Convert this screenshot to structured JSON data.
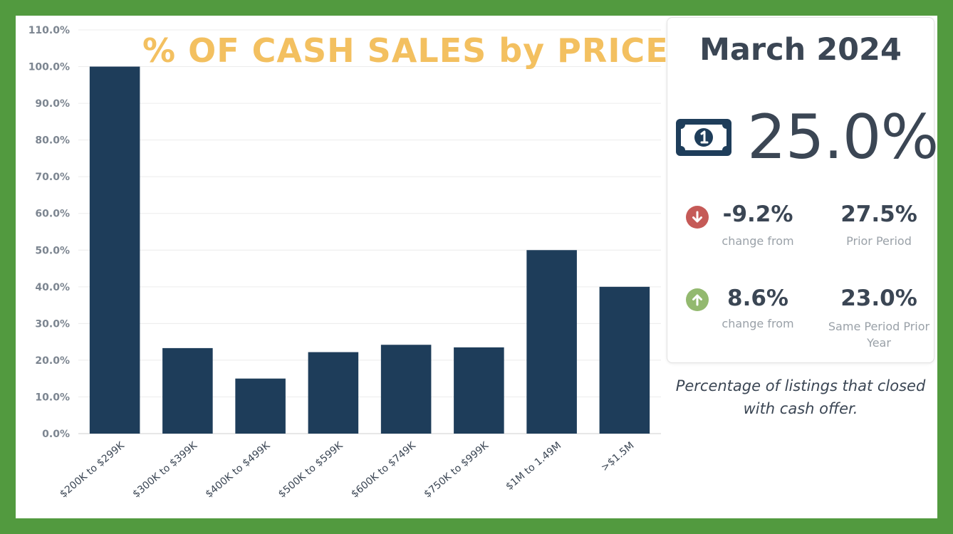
{
  "colors": {
    "background": "#529a3f",
    "bar": "#1e3d5a",
    "title": "#f3c060",
    "text": "#3b4654",
    "muted": "#9aa1a8",
    "down": "#c55a57",
    "up": "#93b96f"
  },
  "chart_data": {
    "type": "bar",
    "title": "% OF CASH SALES by PRICE",
    "categories": [
      "$200K to $299K",
      "$300K to $399K",
      "$400K to $499K",
      "$500K to $599K",
      "$600K to $749K",
      "$750K to $999K",
      "$1M to 1.49M",
      ">$1.5M"
    ],
    "values": [
      100.0,
      23.3,
      15.0,
      22.2,
      24.2,
      23.5,
      50.0,
      40.0
    ],
    "ylim": [
      0,
      110
    ],
    "yticks": [
      "0.0%",
      "10.0%",
      "20.0%",
      "30.0%",
      "40.0%",
      "50.0%",
      "60.0%",
      "70.0%",
      "80.0%",
      "90.0%",
      "100.0%",
      "110.0%"
    ],
    "ytick_values": [
      0,
      10,
      20,
      30,
      40,
      50,
      60,
      70,
      80,
      90,
      100,
      110
    ],
    "grid": true,
    "xlabel": "",
    "ylabel": ""
  },
  "kpi": {
    "period": "March 2024",
    "icon": "cash-bill-icon",
    "value": "25.0%",
    "comparisons": [
      {
        "direction": "down",
        "icon": "arrow-down-icon",
        "change": "-9.2%",
        "change_label": "change from",
        "reference_value": "27.5%",
        "reference_label": "Prior Period"
      },
      {
        "direction": "up",
        "icon": "arrow-up-icon",
        "change": "8.6%",
        "change_label": "change from",
        "reference_value": "23.0%",
        "reference_label": "Same Period Prior Year"
      }
    ]
  },
  "note": "Percentage of listings that closed with cash offer."
}
